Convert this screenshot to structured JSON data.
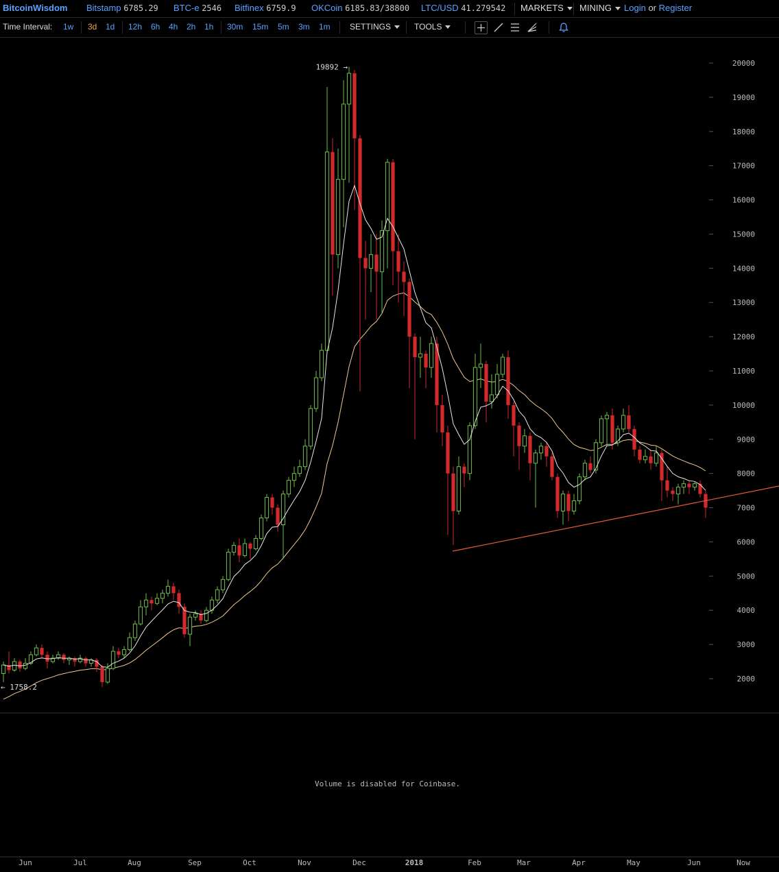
{
  "header": {
    "logo": "BitcoinWisdom",
    "tickers": [
      {
        "name": "Bitstamp",
        "price": "6785.29"
      },
      {
        "name": "BTC-e",
        "price": "2546"
      },
      {
        "name": "Bitfinex",
        "price": "6759.9"
      },
      {
        "name": "OKCoin",
        "price": "6185.83/38800"
      },
      {
        "name": "LTC/USD",
        "price": "41.279542"
      }
    ],
    "markets_label": "MARKETS",
    "mining_label": "MINING",
    "login_label": "Login",
    "or_label": "or",
    "register_label": "Register"
  },
  "toolbar": {
    "time_interval_label": "Time Interval:",
    "intervals": [
      "1w",
      "3d",
      "1d",
      "12h",
      "6h",
      "4h",
      "2h",
      "1h",
      "30m",
      "15m",
      "5m",
      "3m",
      "1m"
    ],
    "active_interval": "3d",
    "settings_label": "SETTINGS",
    "tools_label": "TOOLS",
    "tool_icons": [
      "crosshair-icon",
      "line-draw-icon",
      "fib-lines-icon",
      "fan-icon",
      "alert-bell-icon"
    ]
  },
  "chart_data": {
    "type": "candlestick",
    "price_axis_ticks": [
      2000,
      3000,
      4000,
      5000,
      6000,
      7000,
      8000,
      9000,
      10000,
      11000,
      12000,
      13000,
      14000,
      15000,
      16000,
      17000,
      18000,
      19000,
      20000
    ],
    "ylim": [
      1100,
      20300
    ],
    "month_labels": [
      "Jun",
      "Jul",
      "Aug",
      "Sep",
      "Oct",
      "Nov",
      "Dec",
      "2018",
      "Feb",
      "Mar",
      "Apr",
      "May",
      "Jun",
      "Now"
    ],
    "annotations": [
      {
        "text": "19892 →",
        "value": 19892
      },
      {
        "text": "← 1758.2",
        "value": 1758.2
      }
    ],
    "up_color": "#6fbf4a",
    "down_color": "#d02a2a",
    "ma_fast_color": "#e8e8e8",
    "ma_slow_color": "#f0c890",
    "trendline_color": "#e85a3a",
    "volume_message": "Volume is disabled for Coinbase.",
    "candles": [
      [
        2150,
        2400,
        1900,
        2500
      ],
      [
        2400,
        2250,
        2150,
        2800
      ],
      [
        2250,
        2500,
        2200,
        2600
      ],
      [
        2500,
        2300,
        2200,
        2550
      ],
      [
        2300,
        2450,
        2250,
        2600
      ],
      [
        2450,
        2700,
        2400,
        2800
      ],
      [
        2700,
        2900,
        2650,
        3000
      ],
      [
        2900,
        2700,
        2600,
        3000
      ],
      [
        2700,
        2500,
        2300,
        2800
      ],
      [
        2500,
        2600,
        2450,
        2700
      ],
      [
        2600,
        2700,
        2550,
        2800
      ],
      [
        2700,
        2550,
        2450,
        2750
      ],
      [
        2550,
        2600,
        2400,
        2650
      ],
      [
        2600,
        2500,
        2350,
        2650
      ],
      [
        2500,
        2600,
        2450,
        2700
      ],
      [
        2600,
        2450,
        2350,
        2650
      ],
      [
        2450,
        2550,
        2350,
        2600
      ],
      [
        2550,
        2350,
        2200,
        2600
      ],
      [
        2350,
        1900,
        1758,
        2400
      ],
      [
        1900,
        2300,
        1850,
        2450
      ],
      [
        2300,
        2800,
        2250,
        2950
      ],
      [
        2800,
        2700,
        2600,
        2900
      ],
      [
        2700,
        2850,
        2600,
        2950
      ],
      [
        2850,
        3200,
        2800,
        3350
      ],
      [
        3200,
        3600,
        3100,
        3700
      ],
      [
        3600,
        4100,
        3550,
        4300
      ],
      [
        4100,
        4300,
        3850,
        4500
      ],
      [
        4300,
        4200,
        4000,
        4400
      ],
      [
        4200,
        4350,
        4150,
        4500
      ],
      [
        4350,
        4500,
        4200,
        4600
      ],
      [
        4500,
        4700,
        4400,
        4900
      ],
      [
        4700,
        4500,
        4300,
        4800
      ],
      [
        4500,
        4100,
        3900,
        4600
      ],
      [
        4100,
        3300,
        3200,
        4200
      ],
      [
        3300,
        3800,
        2950,
        3900
      ],
      [
        3800,
        3900,
        3700,
        4000
      ],
      [
        3900,
        3700,
        3600,
        4000
      ],
      [
        3700,
        4000,
        3650,
        4100
      ],
      [
        4000,
        4300,
        3900,
        4400
      ],
      [
        4300,
        4600,
        4200,
        4700
      ],
      [
        4600,
        4900,
        4500,
        5000
      ],
      [
        4900,
        5700,
        4850,
        5800
      ],
      [
        5700,
        5900,
        5600,
        6000
      ],
      [
        5900,
        5600,
        5400,
        6100
      ],
      [
        5600,
        5950,
        5550,
        6100
      ],
      [
        5950,
        5800,
        5500,
        6000
      ],
      [
        5800,
        6100,
        5750,
        6200
      ],
      [
        6100,
        6700,
        6050,
        6800
      ],
      [
        6700,
        7300,
        6600,
        7400
      ],
      [
        7300,
        7000,
        6800,
        7400
      ],
      [
        7000,
        6500,
        6300,
        7100
      ],
      [
        6500,
        7400,
        5500,
        7500
      ],
      [
        7400,
        7800,
        7300,
        7900
      ],
      [
        7800,
        8000,
        7600,
        8200
      ],
      [
        8000,
        8200,
        7900,
        8400
      ],
      [
        8200,
        8800,
        8100,
        9000
      ],
      [
        8800,
        9900,
        8700,
        10000
      ],
      [
        9900,
        10800,
        9800,
        11000
      ],
      [
        10800,
        11600,
        10700,
        11800
      ],
      [
        11600,
        17400,
        11500,
        19300
      ],
      [
        17400,
        14400,
        13200,
        17800
      ],
      [
        14400,
        16600,
        14000,
        17500
      ],
      [
        16600,
        18800,
        15200,
        19500
      ],
      [
        18800,
        19700,
        16500,
        19892
      ],
      [
        19700,
        17800,
        15700,
        19800
      ],
      [
        17800,
        14300,
        10400,
        17900
      ],
      [
        14300,
        14000,
        12500,
        14800
      ],
      [
        14000,
        14400,
        13300,
        15000
      ],
      [
        14400,
        13900,
        12500,
        15000
      ],
      [
        13900,
        15100,
        12700,
        15400
      ],
      [
        15100,
        17100,
        14000,
        17200
      ],
      [
        17100,
        14500,
        13500,
        17200
      ],
      [
        14500,
        13900,
        13000,
        15000
      ],
      [
        13900,
        13600,
        12600,
        14200
      ],
      [
        13600,
        12000,
        10500,
        13700
      ],
      [
        12000,
        11400,
        9000,
        12100
      ],
      [
        11400,
        11500,
        10800,
        12000
      ],
      [
        11500,
        11100,
        10500,
        11600
      ],
      [
        11100,
        11800,
        10800,
        12000
      ],
      [
        11800,
        10000,
        9200,
        12000
      ],
      [
        10000,
        9200,
        8800,
        10300
      ],
      [
        9200,
        8000,
        6200,
        9400
      ],
      [
        8000,
        6900,
        5900,
        8200
      ],
      [
        6900,
        8200,
        6800,
        8500
      ],
      [
        8200,
        8000,
        7600,
        8300
      ],
      [
        8000,
        9400,
        7800,
        9500
      ],
      [
        9400,
        11100,
        9300,
        11500
      ],
      [
        11100,
        11200,
        10500,
        11800
      ],
      [
        11200,
        10100,
        9500,
        11300
      ],
      [
        10100,
        10300,
        9900,
        10900
      ],
      [
        10300,
        10900,
        10200,
        11200
      ],
      [
        10900,
        11400,
        10800,
        11500
      ],
      [
        11400,
        10000,
        9600,
        11600
      ],
      [
        10000,
        9400,
        8500,
        10100
      ],
      [
        9400,
        8800,
        8100,
        9500
      ],
      [
        8800,
        9100,
        8600,
        9300
      ],
      [
        9100,
        8300,
        7800,
        9200
      ],
      [
        8300,
        8600,
        7000,
        8700
      ],
      [
        8600,
        8800,
        8400,
        8900
      ],
      [
        8800,
        8500,
        8200,
        8900
      ],
      [
        8500,
        7900,
        7800,
        8600
      ],
      [
        7900,
        6900,
        6700,
        8000
      ],
      [
        6900,
        7400,
        6500,
        7500
      ],
      [
        7400,
        6900,
        6600,
        7500
      ],
      [
        6900,
        7200,
        6800,
        7400
      ],
      [
        7200,
        7900,
        7100,
        8000
      ],
      [
        7900,
        8300,
        7800,
        8400
      ],
      [
        8300,
        8100,
        8000,
        8500
      ],
      [
        8100,
        8900,
        8000,
        9000
      ],
      [
        8900,
        9600,
        8800,
        9700
      ],
      [
        9600,
        9700,
        8800,
        9800
      ],
      [
        9700,
        8900,
        8700,
        9900
      ],
      [
        8900,
        9300,
        8800,
        9400
      ],
      [
        9300,
        9700,
        9200,
        9900
      ],
      [
        9700,
        9300,
        9200,
        10000
      ],
      [
        9300,
        8700,
        8500,
        9400
      ],
      [
        8700,
        8400,
        8300,
        8800
      ],
      [
        8400,
        8500,
        8300,
        8700
      ],
      [
        8500,
        8300,
        8100,
        8700
      ],
      [
        8300,
        8600,
        8200,
        8800
      ],
      [
        8600,
        7800,
        7200,
        8700
      ],
      [
        7800,
        7500,
        7300,
        8200
      ],
      [
        7500,
        7400,
        7200,
        7600
      ],
      [
        7400,
        7600,
        7100,
        7700
      ],
      [
        7600,
        7700,
        7400,
        7800
      ],
      [
        7700,
        7600,
        7400,
        7800
      ],
      [
        7600,
        7700,
        7500,
        7750
      ],
      [
        7700,
        7400,
        7300,
        7800
      ],
      [
        7400,
        7000,
        6700,
        7500
      ]
    ]
  }
}
